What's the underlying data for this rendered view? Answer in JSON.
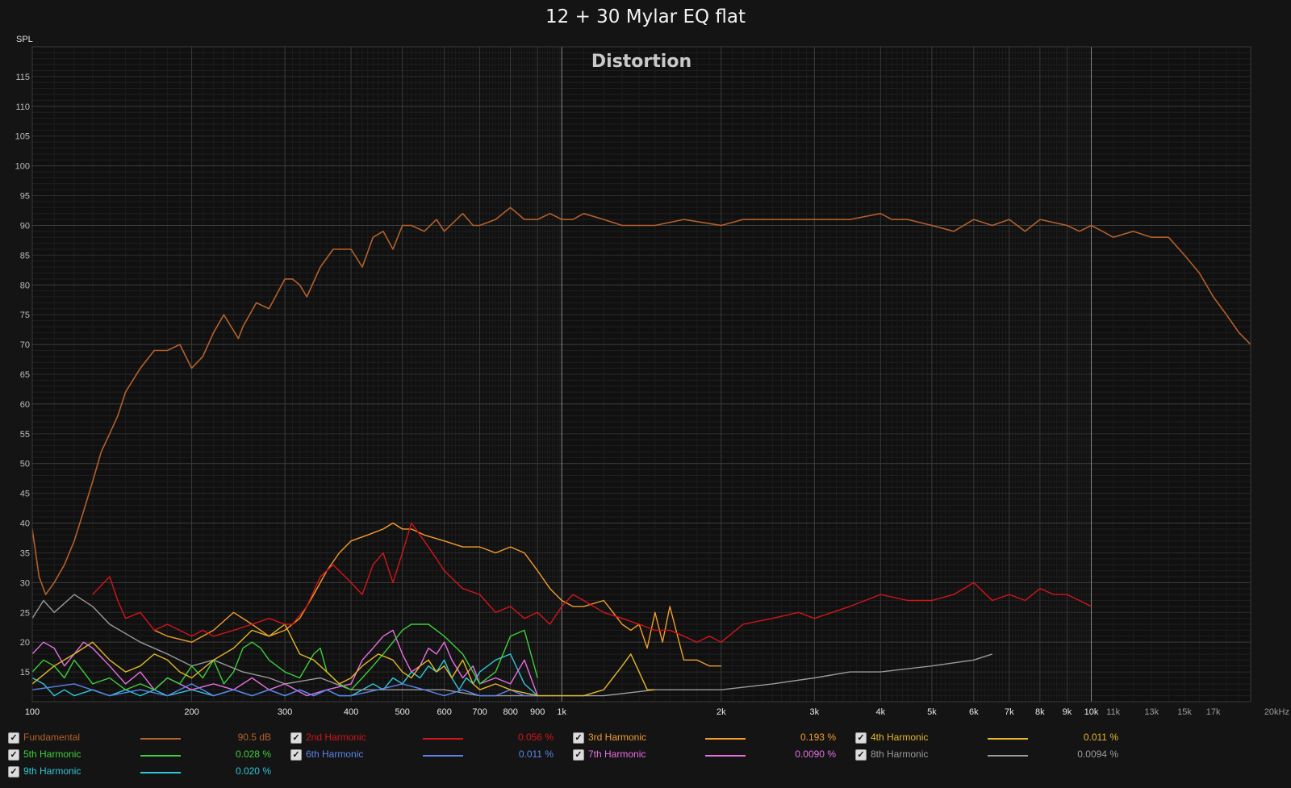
{
  "chart_data": {
    "type": "line",
    "title": "12 + 30 Mylar EQ flat",
    "subtitle": "Distortion",
    "ylabel": "SPL",
    "xlabel": "",
    "x_scale": "log",
    "xlim": [
      100,
      20000
    ],
    "ylim": [
      10,
      120
    ],
    "grid": true,
    "y_ticks": [
      15,
      20,
      25,
      30,
      35,
      40,
      45,
      50,
      55,
      60,
      65,
      70,
      75,
      80,
      85,
      90,
      95,
      100,
      105,
      110,
      115
    ],
    "x_ticks_major": [
      {
        "value": 100,
        "label": "100"
      },
      {
        "value": 200,
        "label": "200"
      },
      {
        "value": 300,
        "label": "300"
      },
      {
        "value": 400,
        "label": "400"
      },
      {
        "value": 500,
        "label": "500"
      },
      {
        "value": 600,
        "label": "600"
      },
      {
        "value": 700,
        "label": "700"
      },
      {
        "value": 800,
        "label": "800"
      },
      {
        "value": 900,
        "label": "900"
      },
      {
        "value": 1000,
        "label": "1k"
      },
      {
        "value": 2000,
        "label": "2k"
      },
      {
        "value": 3000,
        "label": "3k"
      },
      {
        "value": 4000,
        "label": "4k"
      },
      {
        "value": 5000,
        "label": "5k"
      },
      {
        "value": 6000,
        "label": "6k"
      },
      {
        "value": 7000,
        "label": "7k"
      },
      {
        "value": 8000,
        "label": "8k"
      },
      {
        "value": 9000,
        "label": "9k"
      },
      {
        "value": 10000,
        "label": "10k"
      }
    ],
    "x_ticks_minor": [
      {
        "value": 11000,
        "label": "11k"
      },
      {
        "value": 13000,
        "label": "13k"
      },
      {
        "value": 15000,
        "label": "15k"
      },
      {
        "value": 17000,
        "label": "17k"
      },
      {
        "value": 20000,
        "label": "20kHz"
      }
    ],
    "series": [
      {
        "name": "Fundamental",
        "color": "#b3602c",
        "value_label": "90.5 dB",
        "x": [
          100,
          103,
          106,
          110,
          115,
          120,
          125,
          130,
          135,
          140,
          145,
          150,
          160,
          170,
          180,
          190,
          200,
          210,
          220,
          230,
          245,
          250,
          265,
          280,
          300,
          310,
          320,
          330,
          350,
          370,
          400,
          420,
          440,
          460,
          480,
          500,
          520,
          550,
          580,
          600,
          650,
          680,
          700,
          750,
          800,
          850,
          900,
          950,
          1000,
          1050,
          1100,
          1200,
          1300,
          1400,
          1500,
          1700,
          2000,
          2200,
          2500,
          3000,
          3500,
          4000,
          4200,
          4500,
          5000,
          5500,
          6000,
          6500,
          7000,
          7500,
          8000,
          9000,
          9500,
          10000,
          10500,
          11000,
          12000,
          13000,
          14000,
          15000,
          16000,
          17000,
          18000,
          19000,
          20000
        ],
        "y": [
          39,
          31,
          28,
          30,
          33,
          37,
          42,
          47,
          52,
          55,
          58,
          62,
          66,
          69,
          69,
          70,
          66,
          68,
          72,
          75,
          71,
          73,
          77,
          76,
          81,
          81,
          80,
          78,
          83,
          86,
          86,
          83,
          88,
          89,
          86,
          90,
          90,
          89,
          91,
          89,
          92,
          90,
          90,
          91,
          93,
          91,
          91,
          92,
          91,
          91,
          92,
          91,
          90,
          90,
          90,
          91,
          90,
          91,
          91,
          91,
          91,
          92,
          91,
          91,
          90,
          89,
          91,
          90,
          91,
          89,
          91,
          90,
          89,
          90,
          89,
          88,
          89,
          88,
          88,
          85,
          82,
          78,
          75,
          72,
          70
        ]
      },
      {
        "name": "2nd Harmonic",
        "color": "#d4141a",
        "value_label": "0.056 %",
        "x": [
          130,
          140,
          145,
          150,
          160,
          170,
          180,
          200,
          210,
          220,
          240,
          260,
          280,
          300,
          310,
          330,
          350,
          370,
          400,
          420,
          440,
          460,
          480,
          500,
          520,
          550,
          580,
          600,
          650,
          700,
          750,
          800,
          850,
          900,
          950,
          1000,
          1050,
          1100,
          1200,
          1300,
          1400,
          1500,
          1600,
          1700,
          1800,
          1900,
          2000,
          2200,
          2500,
          2800,
          3000,
          3500,
          4000,
          4500,
          5000,
          5500,
          6000,
          6500,
          7000,
          7500,
          8000,
          8500,
          9000,
          9500,
          10000
        ],
        "y": [
          28,
          31,
          27,
          24,
          25,
          22,
          23,
          21,
          22,
          21,
          22,
          23,
          24,
          23,
          23,
          26,
          31,
          33,
          30,
          28,
          33,
          35,
          30,
          35,
          40,
          37,
          34,
          32,
          29,
          28,
          25,
          26,
          24,
          25,
          23,
          26,
          28,
          27,
          25,
          24,
          23,
          22,
          22,
          21,
          20,
          21,
          20,
          23,
          24,
          25,
          24,
          26,
          28,
          27,
          27,
          28,
          30,
          27,
          28,
          27,
          29,
          28,
          28,
          27,
          26
        ]
      },
      {
        "name": "3rd Harmonic",
        "color": "#f29d2c",
        "value_label": "0.193 %",
        "x": [
          170,
          180,
          200,
          220,
          240,
          260,
          280,
          300,
          320,
          340,
          360,
          380,
          400,
          430,
          460,
          480,
          500,
          520,
          550,
          600,
          650,
          700,
          750,
          800,
          850,
          900,
          950,
          1000,
          1050,
          1100,
          1200,
          1250,
          1300,
          1350,
          1400,
          1450,
          1500,
          1550,
          1600,
          1700,
          1800,
          1900,
          2000
        ],
        "y": [
          22,
          21,
          20,
          22,
          25,
          23,
          21,
          22,
          24,
          28,
          32,
          35,
          37,
          38,
          39,
          40,
          39,
          39,
          38,
          37,
          36,
          36,
          35,
          36,
          35,
          32,
          29,
          27,
          26,
          26,
          27,
          25,
          23,
          22,
          23,
          19,
          25,
          20,
          26,
          17,
          17,
          16,
          16
        ]
      },
      {
        "name": "4th Harmonic",
        "color": "#e3b828",
        "value_label": "0.011 %",
        "x": [
          100,
          110,
          120,
          130,
          140,
          150,
          160,
          170,
          180,
          190,
          200,
          220,
          240,
          260,
          280,
          300,
          320,
          340,
          360,
          380,
          400,
          420,
          450,
          480,
          500,
          520,
          540,
          560,
          580,
          600,
          620,
          650,
          680,
          700,
          750,
          800,
          900,
          1000,
          1100,
          1200,
          1300,
          1350,
          1400,
          1450,
          1500
        ],
        "y": [
          13,
          16,
          18,
          20,
          17,
          15,
          16,
          18,
          17,
          15,
          14,
          17,
          19,
          22,
          21,
          23,
          18,
          17,
          15,
          13,
          14,
          16,
          18,
          17,
          15,
          14,
          16,
          17,
          15,
          16,
          14,
          17,
          13,
          12,
          13,
          12,
          11,
          11,
          11,
          12,
          16,
          18,
          15,
          12,
          12
        ]
      },
      {
        "name": "5th Harmonic",
        "color": "#3ccf3c",
        "value_label": "0.028 %",
        "x": [
          100,
          105,
          110,
          115,
          120,
          125,
          130,
          140,
          150,
          160,
          170,
          180,
          190,
          200,
          210,
          220,
          230,
          240,
          250,
          260,
          270,
          280,
          300,
          320,
          340,
          350,
          360,
          380,
          400,
          420,
          440,
          460,
          480,
          500,
          520,
          540,
          560,
          580,
          600,
          650,
          700,
          750,
          800,
          850,
          900
        ],
        "y": [
          15,
          17,
          16,
          14,
          17,
          15,
          13,
          14,
          12,
          13,
          12,
          14,
          13,
          16,
          14,
          17,
          13,
          15,
          19,
          20,
          19,
          17,
          15,
          14,
          18,
          19,
          15,
          13,
          12,
          14,
          16,
          18,
          20,
          22,
          23,
          23,
          23,
          22,
          21,
          18,
          13,
          15,
          21,
          22,
          14
        ]
      },
      {
        "name": "6th Harmonic",
        "color": "#5b84ea",
        "value_label": "0.011 %",
        "x": [
          100,
          120,
          140,
          160,
          180,
          200,
          220,
          240,
          260,
          280,
          300,
          320,
          340,
          360,
          380,
          400,
          450,
          500,
          550,
          600,
          650,
          700,
          750,
          800,
          850,
          900
        ],
        "y": [
          12,
          13,
          11,
          12,
          11,
          13,
          11,
          12,
          11,
          12,
          11,
          12,
          11,
          12,
          11,
          11,
          12,
          13,
          12,
          11,
          12,
          11,
          11,
          12,
          11,
          11
        ]
      },
      {
        "name": "7th Harmonic",
        "color": "#e76fe0",
        "value_label": "0.0090 %",
        "x": [
          100,
          105,
          110,
          115,
          120,
          125,
          130,
          140,
          150,
          160,
          170,
          180,
          200,
          220,
          240,
          260,
          280,
          300,
          330,
          360,
          400,
          420,
          440,
          460,
          480,
          500,
          520,
          540,
          560,
          580,
          600,
          620,
          650,
          680,
          700,
          750,
          800,
          850,
          900
        ],
        "y": [
          18,
          20,
          19,
          16,
          18,
          20,
          19,
          16,
          13,
          15,
          12,
          14,
          12,
          13,
          12,
          14,
          12,
          13,
          11,
          12,
          13,
          17,
          19,
          21,
          22,
          18,
          15,
          16,
          19,
          18,
          20,
          17,
          14,
          16,
          13,
          14,
          13,
          17,
          11
        ]
      },
      {
        "name": "8th Harmonic",
        "color": "#9a9a9a",
        "value_label": "0.0094 %",
        "x": [
          100,
          105,
          110,
          120,
          130,
          140,
          160,
          180,
          200,
          220,
          250,
          280,
          300,
          350,
          400,
          500,
          600,
          700,
          800,
          1000,
          1200,
          1500,
          2000,
          2500,
          3000,
          3500,
          4000,
          5000,
          6000,
          6500
        ],
        "y": [
          24,
          27,
          25,
          28,
          26,
          23,
          20,
          18,
          16,
          17,
          15,
          14,
          13,
          14,
          12,
          12,
          12,
          11,
          11,
          11,
          11,
          12,
          12,
          13,
          14,
          15,
          15,
          16,
          17,
          18
        ]
      },
      {
        "name": "9th Harmonic",
        "color": "#2fc7d6",
        "value_label": "0.020 %",
        "x": [
          100,
          105,
          110,
          115,
          120,
          130,
          140,
          150,
          160,
          170,
          180,
          200,
          220,
          240,
          260,
          280,
          300,
          320,
          340,
          360,
          380,
          400,
          420,
          440,
          460,
          480,
          500,
          520,
          540,
          560,
          580,
          600,
          620,
          640,
          660,
          680,
          700,
          750,
          800,
          850,
          900
        ],
        "y": [
          14,
          13,
          11,
          12,
          11,
          12,
          11,
          12,
          11,
          12,
          11,
          12,
          11,
          12,
          11,
          12,
          11,
          12,
          11,
          12,
          11,
          11,
          12,
          13,
          12,
          14,
          13,
          15,
          14,
          16,
          15,
          17,
          14,
          12,
          14,
          13,
          15,
          17,
          18,
          13,
          11
        ]
      }
    ]
  }
}
